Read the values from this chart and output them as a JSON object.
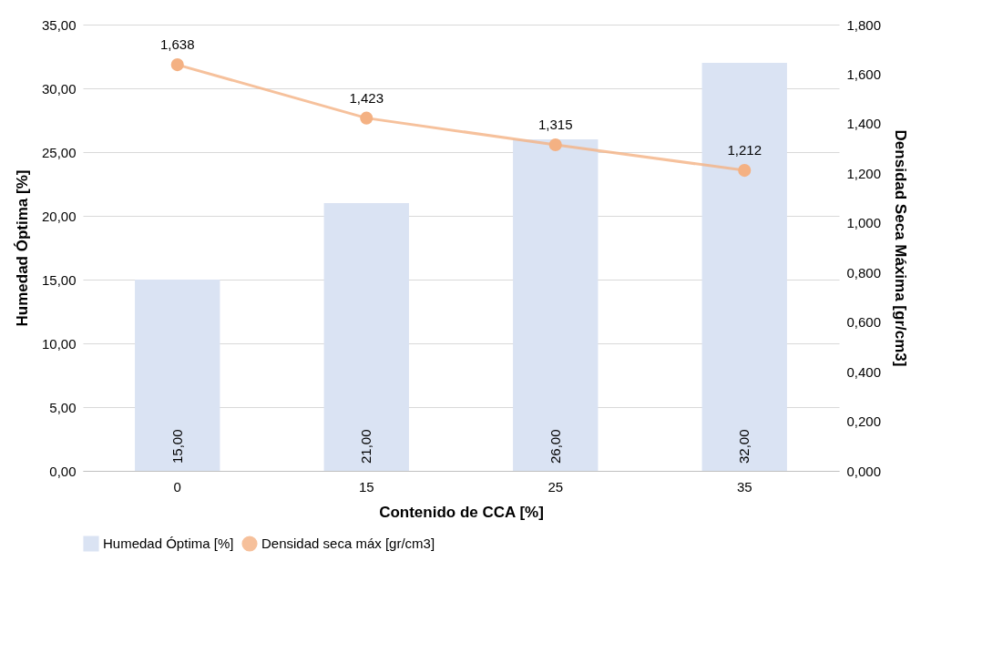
{
  "chart_data": {
    "type": "bar",
    "xlabel": "Contenido de CCA [%]",
    "ylabel": "Humedad Óptima [%]",
    "y2label": "Densidad Seca Máxima [gr/cm3]",
    "categories": [
      "0",
      "15",
      "25",
      "35"
    ],
    "series": [
      {
        "name": "Humedad Óptima [%]",
        "color": "#dae3f3",
        "values": [
          15,
          21,
          26,
          32
        ],
        "value_labels": [
          "15,00",
          "21,00",
          "26,00",
          "32,00"
        ]
      },
      {
        "name": "Densidad seca máx [gr/cm3]",
        "type": "line",
        "axis": "y2",
        "color": "#f4b183",
        "marker": "circle",
        "values": [
          1.638,
          1.423,
          1.315,
          1.212
        ],
        "value_labels": [
          "1,638",
          "1,423",
          "1,315",
          "1,212"
        ]
      }
    ],
    "ylim": [
      0,
      35
    ],
    "yticks": [
      {
        "value": 0,
        "label": "0,00"
      },
      {
        "value": 5,
        "label": "5,00"
      },
      {
        "value": 10,
        "label": "10,00"
      },
      {
        "value": 15,
        "label": "15,00"
      },
      {
        "value": 20,
        "label": "20,00"
      },
      {
        "value": 25,
        "label": "25,00"
      },
      {
        "value": 30,
        "label": "30,00"
      },
      {
        "value": 35,
        "label": "35,00"
      }
    ],
    "y2lim": [
      0,
      1.8
    ],
    "y2ticks": [
      {
        "value": 0,
        "label": "0,000"
      },
      {
        "value": 0.2,
        "label": "0,200"
      },
      {
        "value": 0.4,
        "label": "0,400"
      },
      {
        "value": 0.6,
        "label": "0,600"
      },
      {
        "value": 0.8,
        "label": "0,800"
      },
      {
        "value": 1,
        "label": "1,000"
      },
      {
        "value": 1.2,
        "label": "1,200"
      },
      {
        "value": 1.4,
        "label": "1,400"
      },
      {
        "value": 1.6,
        "label": "1,600"
      },
      {
        "value": 1.8,
        "label": "1,800"
      }
    ],
    "grid": "y",
    "legend": "bottom"
  }
}
